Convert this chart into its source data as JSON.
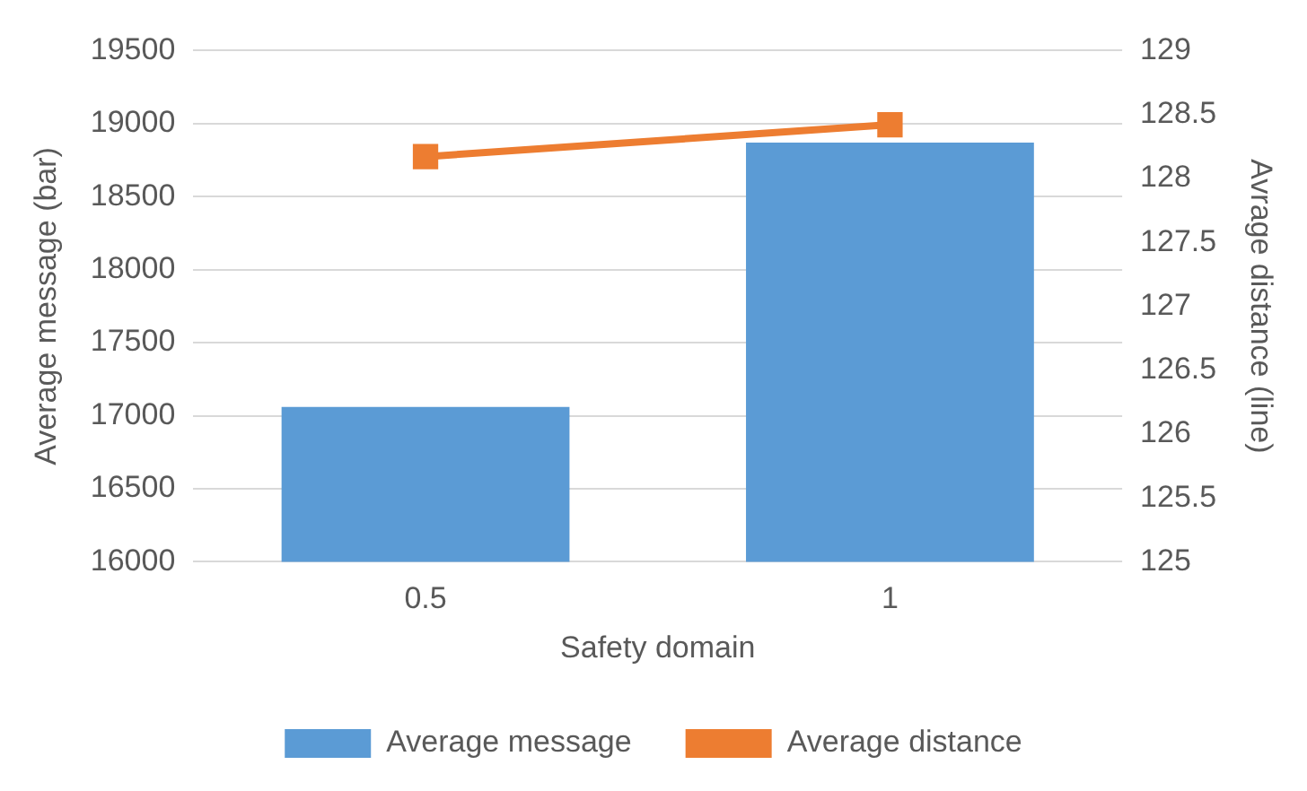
{
  "chart_data": {
    "type": "bar",
    "xlabel": "Safety domain",
    "ylabel": "Average message (bar)",
    "y2label": "Avrage distance (line)",
    "categories": [
      "0.5",
      "1"
    ],
    "series": [
      {
        "name": "Average message",
        "color": "#5b9bd5",
        "values": [
          17060,
          18870
        ]
      },
      {
        "name": "Average distance",
        "type": "line",
        "axis": "y2",
        "color": "#ed7d31",
        "values": [
          128.17,
          128.42
        ]
      }
    ],
    "ylim": [
      16000,
      19500
    ],
    "yticks": [
      16000,
      16500,
      17000,
      17500,
      18000,
      18500,
      19000,
      19500
    ],
    "y2lim": [
      125,
      129
    ],
    "y2ticks": [
      125,
      125.5,
      126,
      126.5,
      127,
      127.5,
      128,
      128.5,
      129
    ],
    "grid": "y",
    "legend": "bottom",
    "marker": "square",
    "line_style": "solid"
  }
}
